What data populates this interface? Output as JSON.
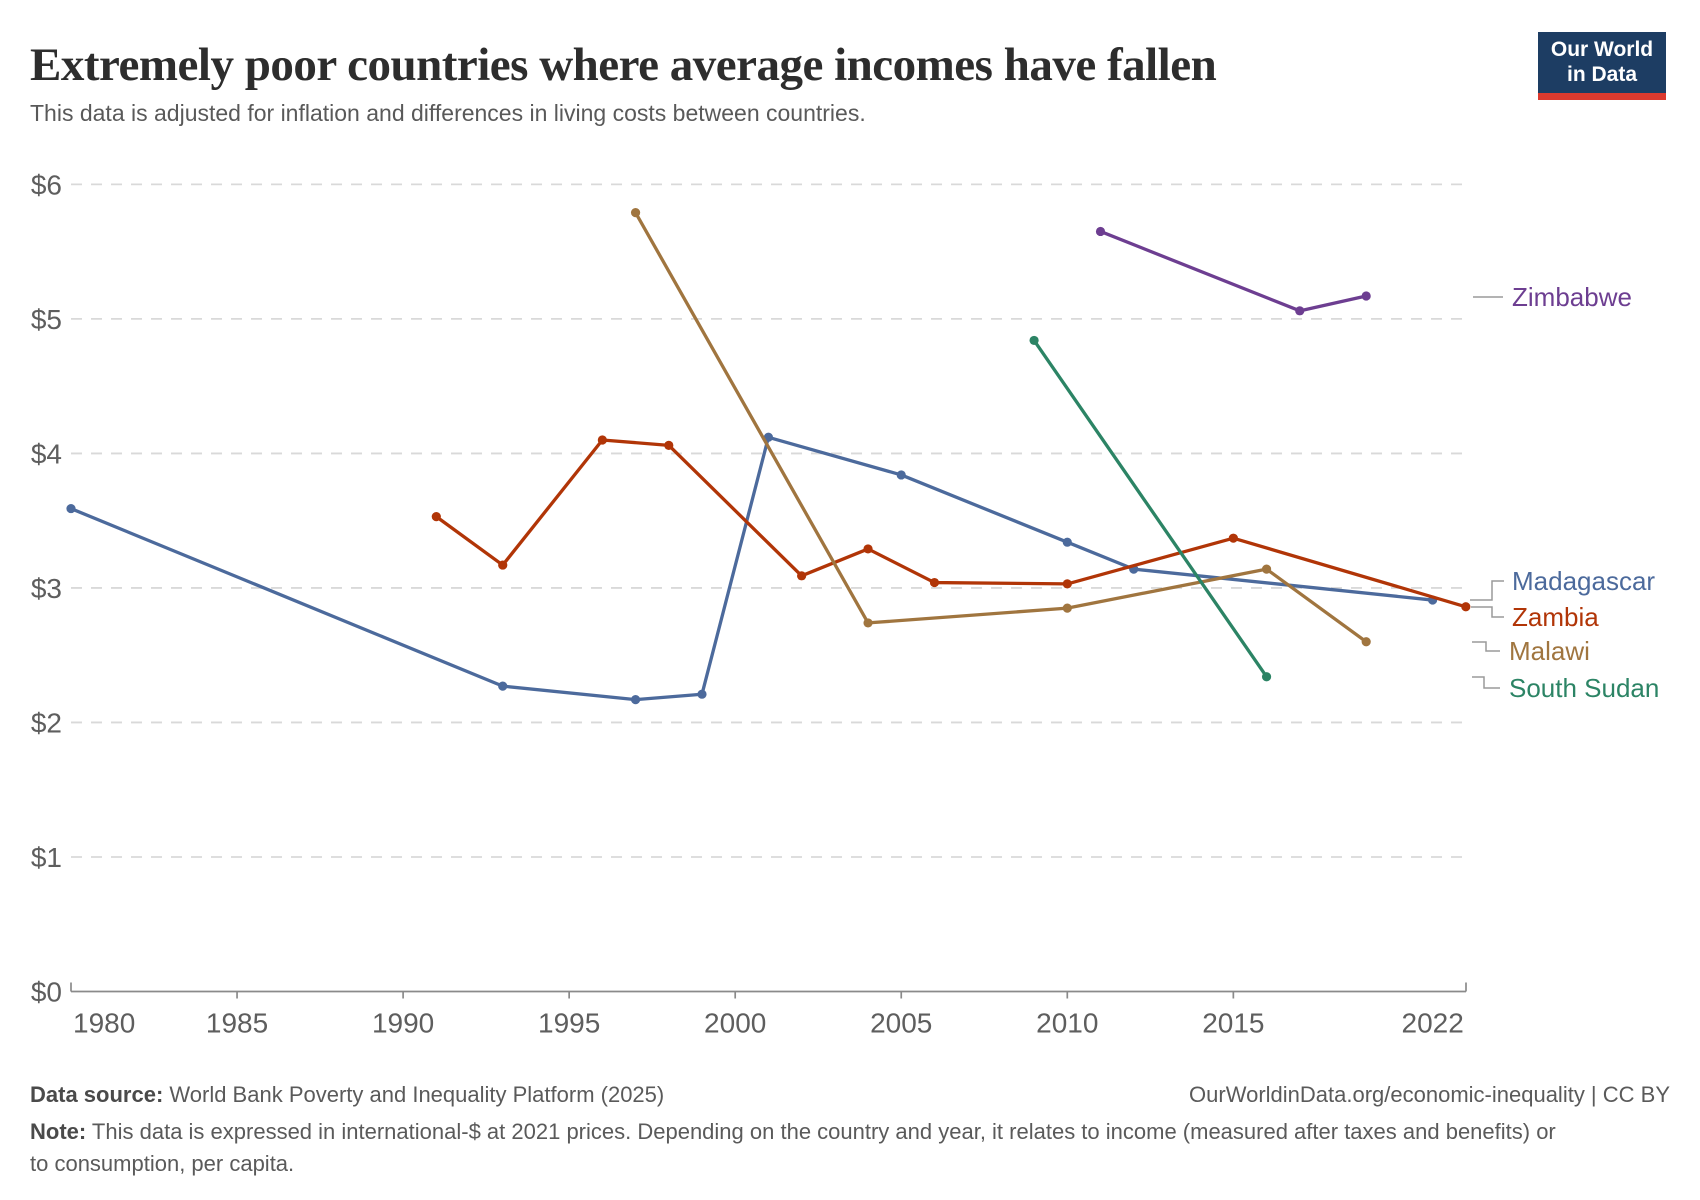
{
  "header": {
    "title": "Extremely poor countries where average incomes have fallen",
    "subtitle": "This data is adjusted for inflation and differences in living costs between countries.",
    "logo": {
      "line1": "Our World",
      "line2": "in Data",
      "bg": "#1d3d63",
      "accent": "#dc3a2f"
    }
  },
  "chart_data": {
    "type": "line",
    "title": "Extremely poor countries where average incomes have fallen",
    "xlabel": "",
    "ylabel": "",
    "xlim": [
      1980,
      2022
    ],
    "ylim": [
      0,
      6
    ],
    "grid": "horizontal-dashed",
    "legend_position": "right-edge-labels",
    "x_ticks": [
      1980,
      1985,
      1990,
      1995,
      2000,
      2005,
      2010,
      2015,
      2022
    ],
    "y_ticks": [
      0,
      1,
      2,
      3,
      4,
      5,
      6
    ],
    "y_tick_prefix": "$",
    "colors": {
      "grid": "#d9d9d9",
      "axis": "#8a8a8a",
      "tick_text": "#5e5e5e",
      "leader": "#9a9a9a"
    },
    "series": [
      {
        "name": "Madagascar",
        "color": "#4C6A9C",
        "points": [
          [
            1980,
            3.59
          ],
          [
            1993,
            2.27
          ],
          [
            1997,
            2.17
          ],
          [
            1999,
            2.21
          ],
          [
            2001,
            4.12
          ],
          [
            2005,
            3.84
          ],
          [
            2010,
            3.34
          ],
          [
            2012,
            3.14
          ],
          [
            2021,
            2.91
          ]
        ]
      },
      {
        "name": "Zambia",
        "color": "#B13507",
        "points": [
          [
            1991,
            3.53
          ],
          [
            1993,
            3.17
          ],
          [
            1996,
            4.1
          ],
          [
            1998,
            4.06
          ],
          [
            2002,
            3.09
          ],
          [
            2004,
            3.29
          ],
          [
            2006,
            3.04
          ],
          [
            2010,
            3.03
          ],
          [
            2015,
            3.37
          ],
          [
            2022,
            2.86
          ]
        ]
      },
      {
        "name": "Malawi",
        "color": "#A0753F",
        "points": [
          [
            1997,
            5.79
          ],
          [
            2004,
            2.74
          ],
          [
            2010,
            2.85
          ],
          [
            2016,
            3.14
          ],
          [
            2019,
            2.6
          ]
        ]
      },
      {
        "name": "South Sudan",
        "color": "#2C8465",
        "points": [
          [
            2009,
            4.84
          ],
          [
            2016,
            2.34
          ]
        ]
      },
      {
        "name": "Zimbabwe",
        "color": "#6D3E91",
        "points": [
          [
            2011,
            5.65
          ],
          [
            2017,
            5.06
          ],
          [
            2019,
            5.17
          ]
        ]
      }
    ]
  },
  "footer": {
    "data_source_label": "Data source:",
    "data_source": " World Bank Poverty and Inequality Platform (2025)",
    "attribution": "OurWorldinData.org/economic-inequality | CC BY",
    "note_label": "Note:",
    "note": " This data is expressed in international-$ at 2021 prices. Depending on the country and year, it relates to income (measured after taxes and benefits) or to consumption, per capita."
  }
}
